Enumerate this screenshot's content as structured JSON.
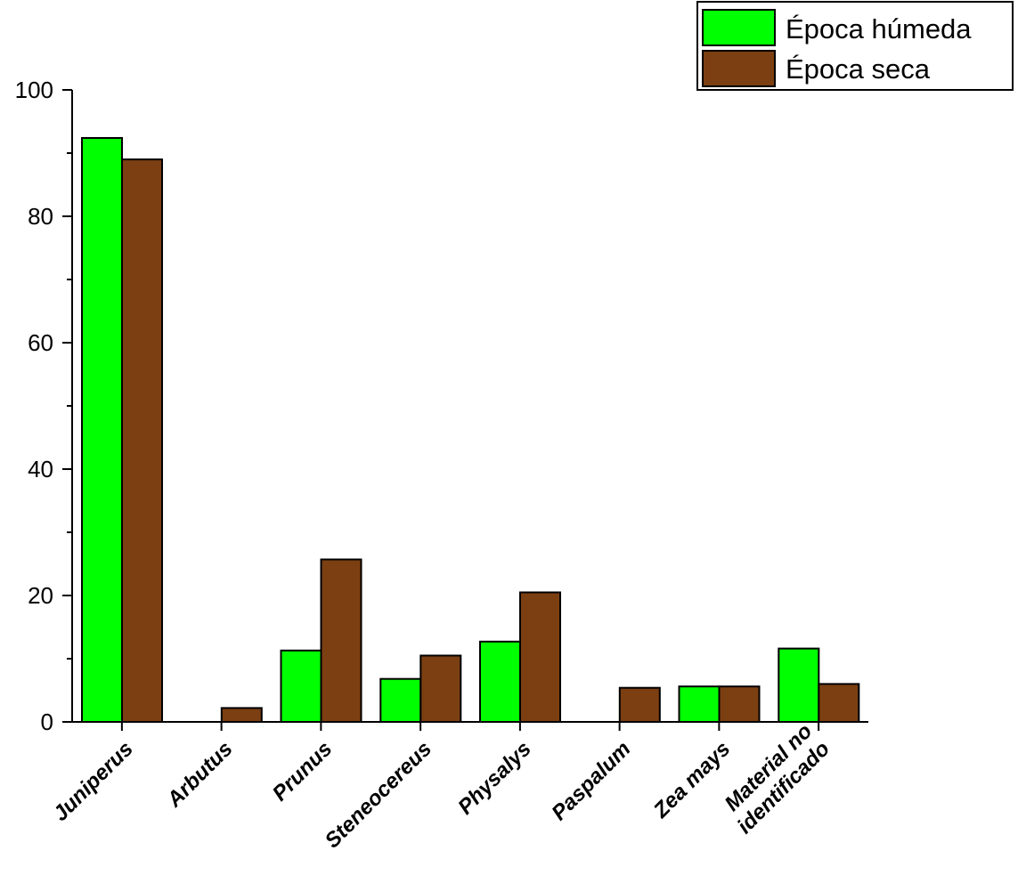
{
  "chart_data": {
    "type": "bar",
    "title": "",
    "xlabel": "",
    "ylabel": "",
    "ylim": [
      0,
      100
    ],
    "yticks": [
      0,
      20,
      40,
      60,
      80,
      100
    ],
    "grid": false,
    "legend_position": "top-right",
    "categories": [
      [
        "Juniperus"
      ],
      [
        "Arbutus"
      ],
      [
        "Prunus"
      ],
      [
        "Steneocereus"
      ],
      [
        "Physalys"
      ],
      [
        "Paspalum"
      ],
      [
        "Zea mays"
      ],
      [
        "Material no",
        "identificado"
      ]
    ],
    "series": [
      {
        "name": "Época húmeda",
        "color": "#00ff00",
        "values": [
          92.4,
          0,
          11.3,
          6.8,
          12.7,
          0,
          5.6,
          11.6
        ]
      },
      {
        "name": "Época seca",
        "color": "#7b3f12",
        "values": [
          89.0,
          2.2,
          25.7,
          10.5,
          20.5,
          5.4,
          5.6,
          6.0
        ]
      }
    ]
  }
}
